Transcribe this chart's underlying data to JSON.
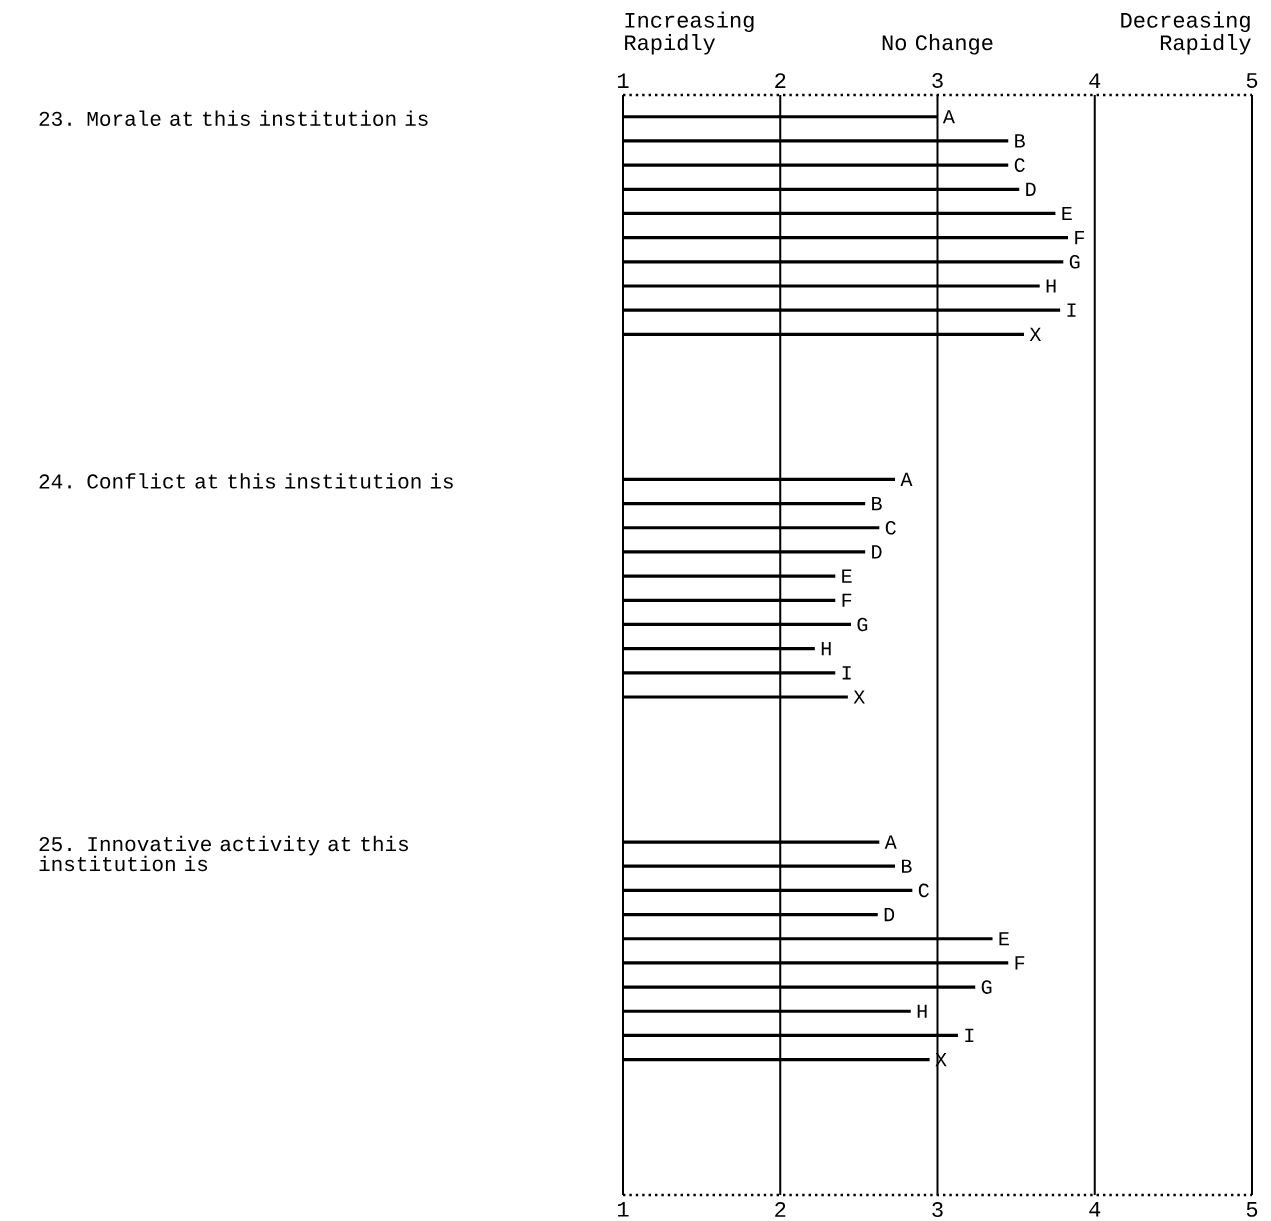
{
  "chart_data": {
    "type": "bar",
    "orientation": "horizontal",
    "categories": [
      "A",
      "B",
      "C",
      "D",
      "E",
      "F",
      "G",
      "H",
      "I",
      "X",
      null,
      null,
      null,
      null,
      null,
      "A",
      "B",
      "C",
      "D",
      "E",
      "F",
      "G",
      "H",
      "I",
      "X",
      null,
      null,
      null,
      null,
      null,
      "A",
      "B",
      "C",
      "D",
      "E",
      "F",
      "G",
      "H",
      "I",
      "X"
    ],
    "values": [
      3.0,
      3.45,
      3.45,
      3.52,
      3.75,
      3.83,
      3.8,
      3.65,
      3.78,
      3.55,
      null,
      null,
      null,
      null,
      null,
      2.73,
      2.54,
      2.63,
      2.54,
      2.35,
      2.35,
      2.45,
      2.22,
      2.35,
      2.43,
      null,
      null,
      null,
      null,
      null,
      2.63,
      2.73,
      2.84,
      2.62,
      3.35,
      3.45,
      3.24,
      2.83,
      3.13,
      2.95
    ],
    "color": "#000000",
    "xlim": [
      1,
      5
    ],
    "xticks": [
      1,
      2,
      3,
      4,
      5
    ],
    "x2lim": [
      1,
      5
    ],
    "x2ticks": [
      1,
      2,
      3,
      4,
      5
    ],
    "grid": "x",
    "annotations": [
      "23. Morale at this institution is",
      "24. Conflict at this institution is",
      "25. Innovative activity at this institution is",
      "Increasing Rapidly",
      "No Change",
      "Decreasing Rapidly"
    ]
  }
}
